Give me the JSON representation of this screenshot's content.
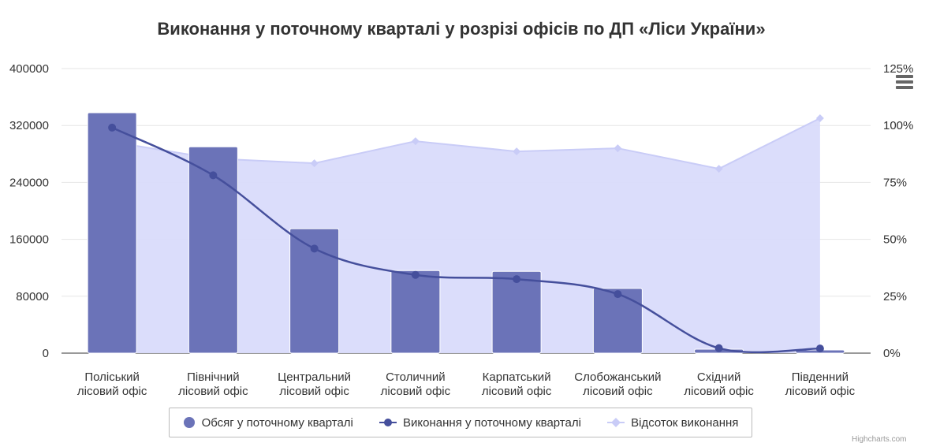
{
  "chart_data": {
    "type": "bar",
    "title": "Виконання у поточному кварталі у розрізі офісів по ДП «Ліси України»",
    "categories": [
      "Поліський лісовий офіс",
      "Північний лісовий офіс",
      "Центральний лісовий офіс",
      "Столичний лісовий офіс",
      "Карпатський лісовий офіс",
      "Слобожанський лісовий офіс",
      "Східний лісовий офіс",
      "Південний лісовий офіс"
    ],
    "series": [
      {
        "name": "Обсяг у поточному кварталі",
        "type": "column",
        "axis": "left",
        "color": "#6b73b8",
        "values": [
          338000,
          290000,
          175000,
          116000,
          115000,
          91000,
          5500,
          4400
        ]
      },
      {
        "name": "Виконання у поточному кварталі",
        "type": "spline",
        "axis": "left",
        "color": "#454f9c",
        "values": [
          317000,
          250000,
          147000,
          110000,
          104000,
          83000,
          7000,
          6500
        ]
      },
      {
        "name": "Відсоток виконання",
        "type": "area",
        "axis": "right",
        "color": "#d9dbfb",
        "values": [
          92.8,
          85.5,
          83.4,
          93.1,
          88.6,
          90,
          81,
          103.2
        ]
      }
    ],
    "yleft": {
      "ylim": [
        0,
        400000
      ],
      "ticks": [
        "0",
        "80000",
        "160000",
        "240000",
        "320000",
        "400000"
      ]
    },
    "yright": {
      "ylim": [
        0,
        125
      ],
      "ticks": [
        "0%",
        "25%",
        "50%",
        "75%",
        "100%",
        "125%"
      ]
    },
    "grid": true,
    "legend_position": "bottom-center"
  },
  "credits": "Highcharts.com"
}
